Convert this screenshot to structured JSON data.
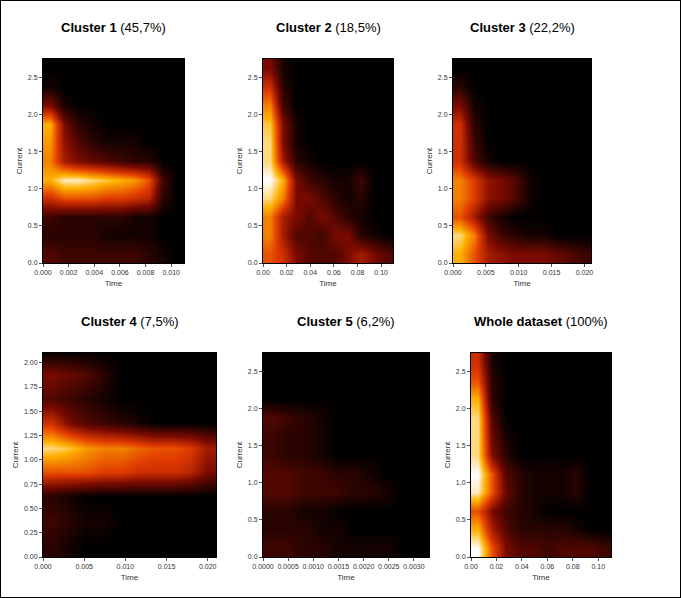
{
  "chart_data": [
    {
      "type": "heatmap",
      "title": "Cluster 1",
      "subtitle": "(45,7%)",
      "xlabel": "Time",
      "ylabel": "Current",
      "xlim": [
        0,
        0.011
      ],
      "ylim": [
        0,
        2.75
      ],
      "zlim": [
        0,
        1
      ],
      "xticks": [
        {
          "value": 0,
          "label": "0.000"
        },
        0.002,
        0.004,
        0.006,
        0.008,
        {
          "value": 0.01,
          "label": "0.010"
        }
      ],
      "yticks": [
        {
          "value": 0,
          "label": "0.0"
        },
        0.5,
        {
          "value": 1,
          "label": "1.0"
        },
        1.5,
        {
          "value": 2,
          "label": "2.0"
        },
        2.5
      ],
      "x": [
        0.00055,
        0.00165,
        0.00275,
        0.00385,
        0.00495,
        0.00605,
        0.00715,
        0.00825,
        0.00935,
        0.01045
      ],
      "y": [
        0.125,
        0.375,
        0.625,
        0.875,
        1.125,
        1.375,
        1.625,
        1.875,
        2.125,
        2.375,
        2.625
      ],
      "z": [
        [
          0.2,
          0.15,
          0.15,
          0.15,
          0.15,
          0.15,
          0.15,
          0.1,
          0.05,
          0
        ],
        [
          0.1,
          0.1,
          0.1,
          0.1,
          0.05,
          0.05,
          0.05,
          0.05,
          0,
          0
        ],
        [
          0.15,
          0.1,
          0.1,
          0.1,
          0.1,
          0.1,
          0.05,
          0.05,
          0,
          0
        ],
        [
          0.5,
          0.6,
          0.6,
          0.6,
          0.55,
          0.55,
          0.5,
          0.45,
          0.1,
          0
        ],
        [
          0.8,
          0.95,
          0.95,
          0.9,
          0.85,
          0.8,
          0.75,
          0.6,
          0.15,
          0
        ],
        [
          0.7,
          0.4,
          0.3,
          0.25,
          0.2,
          0.15,
          0.1,
          0.1,
          0,
          0
        ],
        [
          0.75,
          0.35,
          0.2,
          0.1,
          0.05,
          0.05,
          0.05,
          0,
          0,
          0
        ],
        [
          0.8,
          0.3,
          0.1,
          0.05,
          0,
          0,
          0,
          0,
          0,
          0
        ],
        [
          0.3,
          0.05,
          0,
          0,
          0,
          0,
          0,
          0,
          0,
          0
        ],
        [
          0.05,
          0,
          0,
          0,
          0,
          0,
          0,
          0,
          0,
          0
        ],
        [
          0,
          0,
          0,
          0,
          0,
          0,
          0,
          0,
          0,
          0
        ]
      ]
    },
    {
      "type": "heatmap",
      "title": "Cluster 2",
      "subtitle": "(18,5%)",
      "xlabel": "Time",
      "ylabel": "Current",
      "xlim": [
        0,
        0.11
      ],
      "ylim": [
        0,
        2.75
      ],
      "zlim": [
        0,
        1
      ],
      "xticks": [
        {
          "value": 0,
          "label": "0.00"
        },
        0.02,
        0.04,
        0.06,
        0.08,
        {
          "value": 0.1,
          "label": "0.10"
        }
      ],
      "yticks": [
        {
          "value": 0,
          "label": "0.0"
        },
        0.5,
        {
          "value": 1,
          "label": "1.0"
        },
        1.5,
        {
          "value": 2,
          "label": "2.0"
        },
        2.5
      ],
      "x": [
        0.0055,
        0.0165,
        0.0275,
        0.0385,
        0.0495,
        0.0605,
        0.0715,
        0.0825,
        0.0935,
        0.1045
      ],
      "y": [
        0.125,
        0.375,
        0.625,
        0.875,
        1.125,
        1.375,
        1.625,
        1.875,
        2.125,
        2.375,
        2.625
      ],
      "z": [
        [
          0.6,
          0.5,
          0.3,
          0.2,
          0.2,
          0.2,
          0.3,
          0.4,
          0.3,
          0.2
        ],
        [
          0.7,
          0.4,
          0.2,
          0.2,
          0.15,
          0.3,
          0.3,
          0.1,
          0.05,
          0
        ],
        [
          0.7,
          0.4,
          0.3,
          0.2,
          0.3,
          0.2,
          0.1,
          0.05,
          0,
          0
        ],
        [
          0.9,
          0.7,
          0.3,
          0.3,
          0.2,
          0.1,
          0.05,
          0.1,
          0,
          0
        ],
        [
          1,
          0.8,
          0.3,
          0.15,
          0.1,
          0.05,
          0.05,
          0.15,
          0,
          0
        ],
        [
          0.9,
          0.4,
          0.1,
          0.05,
          0,
          0,
          0,
          0,
          0,
          0
        ],
        [
          0.9,
          0.3,
          0.05,
          0,
          0,
          0,
          0,
          0,
          0,
          0
        ],
        [
          0.85,
          0.3,
          0.05,
          0,
          0,
          0,
          0,
          0,
          0,
          0
        ],
        [
          0.7,
          0.15,
          0,
          0,
          0,
          0,
          0,
          0,
          0,
          0
        ],
        [
          0.5,
          0.1,
          0,
          0,
          0,
          0,
          0,
          0,
          0,
          0
        ],
        [
          0.3,
          0.05,
          0,
          0,
          0,
          0,
          0,
          0,
          0,
          0
        ]
      ]
    },
    {
      "type": "heatmap",
      "title": "Cluster 3",
      "subtitle": "(22,2%)",
      "xlabel": "Time",
      "ylabel": "Current",
      "xlim": [
        0,
        0.021
      ],
      "ylim": [
        0,
        2.75
      ],
      "zlim": [
        0,
        1
      ],
      "xticks": [
        {
          "value": 0,
          "label": "0.000"
        },
        0.005,
        {
          "value": 0.01,
          "label": "0.010"
        },
        0.015,
        {
          "value": 0.02,
          "label": "0.020"
        }
      ],
      "yticks": [
        {
          "value": 0,
          "label": "0.0"
        },
        0.5,
        {
          "value": 1,
          "label": "1.0"
        },
        1.5,
        {
          "value": 2,
          "label": "2.0"
        },
        2.5
      ],
      "x": [
        0.00105,
        0.00315,
        0.00525,
        0.00735,
        0.00945,
        0.01155,
        0.01365,
        0.01575,
        0.01785,
        0.01995
      ],
      "y": [
        0.125,
        0.375,
        0.625,
        0.875,
        1.125,
        1.375,
        1.625,
        1.875,
        2.125,
        2.375,
        2.625
      ],
      "z": [
        [
          0.8,
          0.6,
          0.4,
          0.35,
          0.3,
          0.3,
          0.3,
          0.25,
          0.2,
          0.15
        ],
        [
          0.9,
          0.7,
          0.3,
          0.15,
          0.1,
          0.05,
          0.05,
          0,
          0,
          0
        ],
        [
          0.6,
          0.4,
          0.15,
          0.05,
          0,
          0,
          0,
          0,
          0,
          0
        ],
        [
          0.7,
          0.55,
          0.35,
          0.3,
          0.2,
          0.05,
          0,
          0,
          0,
          0
        ],
        [
          0.7,
          0.55,
          0.35,
          0.3,
          0.2,
          0.05,
          0,
          0,
          0,
          0
        ],
        [
          0.5,
          0.2,
          0.05,
          0,
          0,
          0,
          0,
          0,
          0,
          0
        ],
        [
          0.5,
          0.15,
          0,
          0,
          0,
          0,
          0,
          0,
          0,
          0
        ],
        [
          0.5,
          0.1,
          0,
          0,
          0,
          0,
          0,
          0,
          0,
          0
        ],
        [
          0.3,
          0.05,
          0,
          0,
          0,
          0,
          0,
          0,
          0,
          0
        ],
        [
          0.1,
          0,
          0,
          0,
          0,
          0,
          0,
          0,
          0,
          0
        ],
        [
          0,
          0,
          0,
          0,
          0,
          0,
          0,
          0,
          0,
          0
        ]
      ]
    },
    {
      "type": "heatmap",
      "title": "Cluster 4",
      "subtitle": "(7,5%)",
      "xlabel": "Time",
      "ylabel": "Current",
      "xlim": [
        0,
        0.021
      ],
      "ylim": [
        0,
        2.1
      ],
      "zlim": [
        0,
        1
      ],
      "xticks": [
        {
          "value": 0,
          "label": "0.000"
        },
        0.005,
        {
          "value": 0.01,
          "label": "0.010"
        },
        0.015,
        {
          "value": 0.02,
          "label": "0.020"
        }
      ],
      "yticks": [
        {
          "value": 0,
          "label": "0.00"
        },
        0.25,
        {
          "value": 0.5,
          "label": "0.50"
        },
        0.75,
        {
          "value": 1,
          "label": "1.00"
        },
        1.25,
        {
          "value": 1.5,
          "label": "1.50"
        },
        1.75,
        {
          "value": 2,
          "label": "2.00"
        }
      ],
      "x": [
        0.00105,
        0.00315,
        0.00525,
        0.00735,
        0.00945,
        0.01155,
        0.01365,
        0.01575,
        0.01785,
        0.01995
      ],
      "y": [
        0.125,
        0.375,
        0.625,
        0.875,
        1.125,
        1.375,
        1.625,
        1.875,
        2.125
      ],
      "z": [
        [
          0.1,
          0.05,
          0,
          0,
          0,
          0,
          0,
          0,
          0,
          0
        ],
        [
          0.15,
          0.1,
          0.05,
          0.05,
          0,
          0,
          0,
          0,
          0,
          0
        ],
        [
          0.1,
          0.05,
          0,
          0,
          0,
          0,
          0,
          0,
          0,
          0
        ],
        [
          0.6,
          0.6,
          0.6,
          0.55,
          0.55,
          0.5,
          0.5,
          0.5,
          0.45,
          0.3
        ],
        [
          0.9,
          0.85,
          0.75,
          0.7,
          0.7,
          0.65,
          0.6,
          0.6,
          0.55,
          0.4
        ],
        [
          0.5,
          0.3,
          0.2,
          0.15,
          0.1,
          0.05,
          0,
          0,
          0,
          0
        ],
        [
          0.2,
          0.15,
          0.1,
          0.05,
          0,
          0,
          0,
          0,
          0,
          0
        ],
        [
          0.3,
          0.25,
          0.2,
          0.1,
          0,
          0,
          0,
          0,
          0,
          0
        ],
        [
          0,
          0,
          0,
          0,
          0,
          0,
          0,
          0,
          0,
          0
        ]
      ]
    },
    {
      "type": "heatmap",
      "title": "Cluster 5",
      "subtitle": "(6,2%)",
      "xlabel": "Time",
      "ylabel": "Current",
      "xlim": [
        0,
        0.0033
      ],
      "ylim": [
        0,
        2.75
      ],
      "zlim": [
        0,
        1
      ],
      "xticks": [
        {
          "value": 0,
          "label": "0.0000"
        },
        0.0005,
        {
          "value": 0.001,
          "label": "0.0010"
        },
        0.0015,
        {
          "value": 0.002,
          "label": "0.0020"
        },
        0.0025,
        {
          "value": 0.003,
          "label": "0.0030"
        }
      ],
      "yticks": [
        {
          "value": 0,
          "label": "0.0"
        },
        0.5,
        {
          "value": 1,
          "label": "1.0"
        },
        1.5,
        {
          "value": 2,
          "label": "2.0"
        },
        2.5
      ],
      "x": [
        0.000165,
        0.000495,
        0.000825,
        0.001155,
        0.001485,
        0.001815,
        0.002145,
        0.002475,
        0.002805,
        0.003135
      ],
      "y": [
        0.125,
        0.375,
        0.625,
        0.875,
        1.125,
        1.375,
        1.625,
        1.875,
        2.125,
        2.375,
        2.625
      ],
      "z": [
        [
          0.15,
          0.15,
          0.1,
          0.1,
          0.05,
          0.05,
          0.05,
          0.05,
          0,
          0
        ],
        [
          0.1,
          0.1,
          0.1,
          0.05,
          0.05,
          0,
          0,
          0,
          0,
          0
        ],
        [
          0.1,
          0.1,
          0.05,
          0.05,
          0,
          0,
          0,
          0,
          0,
          0
        ],
        [
          0.2,
          0.2,
          0.15,
          0.15,
          0.15,
          0.1,
          0.1,
          0.05,
          0,
          0
        ],
        [
          0.2,
          0.2,
          0.15,
          0.15,
          0.1,
          0.1,
          0.05,
          0,
          0,
          0
        ],
        [
          0.15,
          0.1,
          0.1,
          0.05,
          0,
          0,
          0,
          0,
          0,
          0
        ],
        [
          0.15,
          0.1,
          0.1,
          0.05,
          0,
          0,
          0,
          0,
          0,
          0
        ],
        [
          0.2,
          0.15,
          0.1,
          0.05,
          0,
          0,
          0,
          0,
          0,
          0
        ],
        [
          0,
          0,
          0,
          0,
          0,
          0,
          0,
          0,
          0,
          0
        ],
        [
          0,
          0,
          0,
          0,
          0,
          0,
          0,
          0,
          0,
          0
        ],
        [
          0,
          0,
          0,
          0,
          0,
          0,
          0,
          0,
          0,
          0
        ]
      ]
    },
    {
      "type": "heatmap",
      "title": "Whole dataset",
      "subtitle": "(100%)",
      "xlabel": "Time",
      "ylabel": "Current",
      "xlim": [
        0,
        0.11
      ],
      "ylim": [
        0,
        2.75
      ],
      "zlim": [
        0,
        1
      ],
      "xticks": [
        {
          "value": 0,
          "label": "0.00"
        },
        0.02,
        0.04,
        0.06,
        0.08,
        {
          "value": 0.1,
          "label": "0.10"
        }
      ],
      "yticks": [
        {
          "value": 0,
          "label": "0.0"
        },
        0.5,
        {
          "value": 1,
          "label": "1.0"
        },
        1.5,
        {
          "value": 2,
          "label": "2.0"
        },
        2.5
      ],
      "x": [
        0.0055,
        0.0165,
        0.0275,
        0.0385,
        0.0495,
        0.0605,
        0.0715,
        0.0825,
        0.0935,
        0.1045
      ],
      "y": [
        0.125,
        0.375,
        0.625,
        0.875,
        1.125,
        1.375,
        1.625,
        1.875,
        2.125,
        2.375,
        2.625
      ],
      "z": [
        [
          1,
          0.6,
          0.3,
          0.2,
          0.2,
          0.15,
          0.2,
          0.2,
          0.2,
          0.15
        ],
        [
          0.8,
          0.4,
          0.2,
          0.1,
          0.1,
          0.1,
          0.1,
          0.05,
          0,
          0
        ],
        [
          0.6,
          0.3,
          0.15,
          0.1,
          0.05,
          0,
          0,
          0,
          0,
          0
        ],
        [
          0.95,
          0.6,
          0.25,
          0.1,
          0.05,
          0.05,
          0.05,
          0.1,
          0,
          0
        ],
        [
          1,
          0.6,
          0.2,
          0.1,
          0.05,
          0.05,
          0.05,
          0.1,
          0,
          0
        ],
        [
          0.9,
          0.3,
          0.1,
          0,
          0,
          0,
          0,
          0,
          0,
          0
        ],
        [
          0.9,
          0.25,
          0.05,
          0,
          0,
          0,
          0,
          0,
          0,
          0
        ],
        [
          0.9,
          0.2,
          0,
          0,
          0,
          0,
          0,
          0,
          0,
          0
        ],
        [
          0.8,
          0.1,
          0,
          0,
          0,
          0,
          0,
          0,
          0,
          0
        ],
        [
          0.6,
          0.1,
          0,
          0,
          0,
          0,
          0,
          0,
          0,
          0
        ],
        [
          0.5,
          0.05,
          0,
          0,
          0,
          0,
          0,
          0,
          0,
          0
        ]
      ]
    }
  ]
}
